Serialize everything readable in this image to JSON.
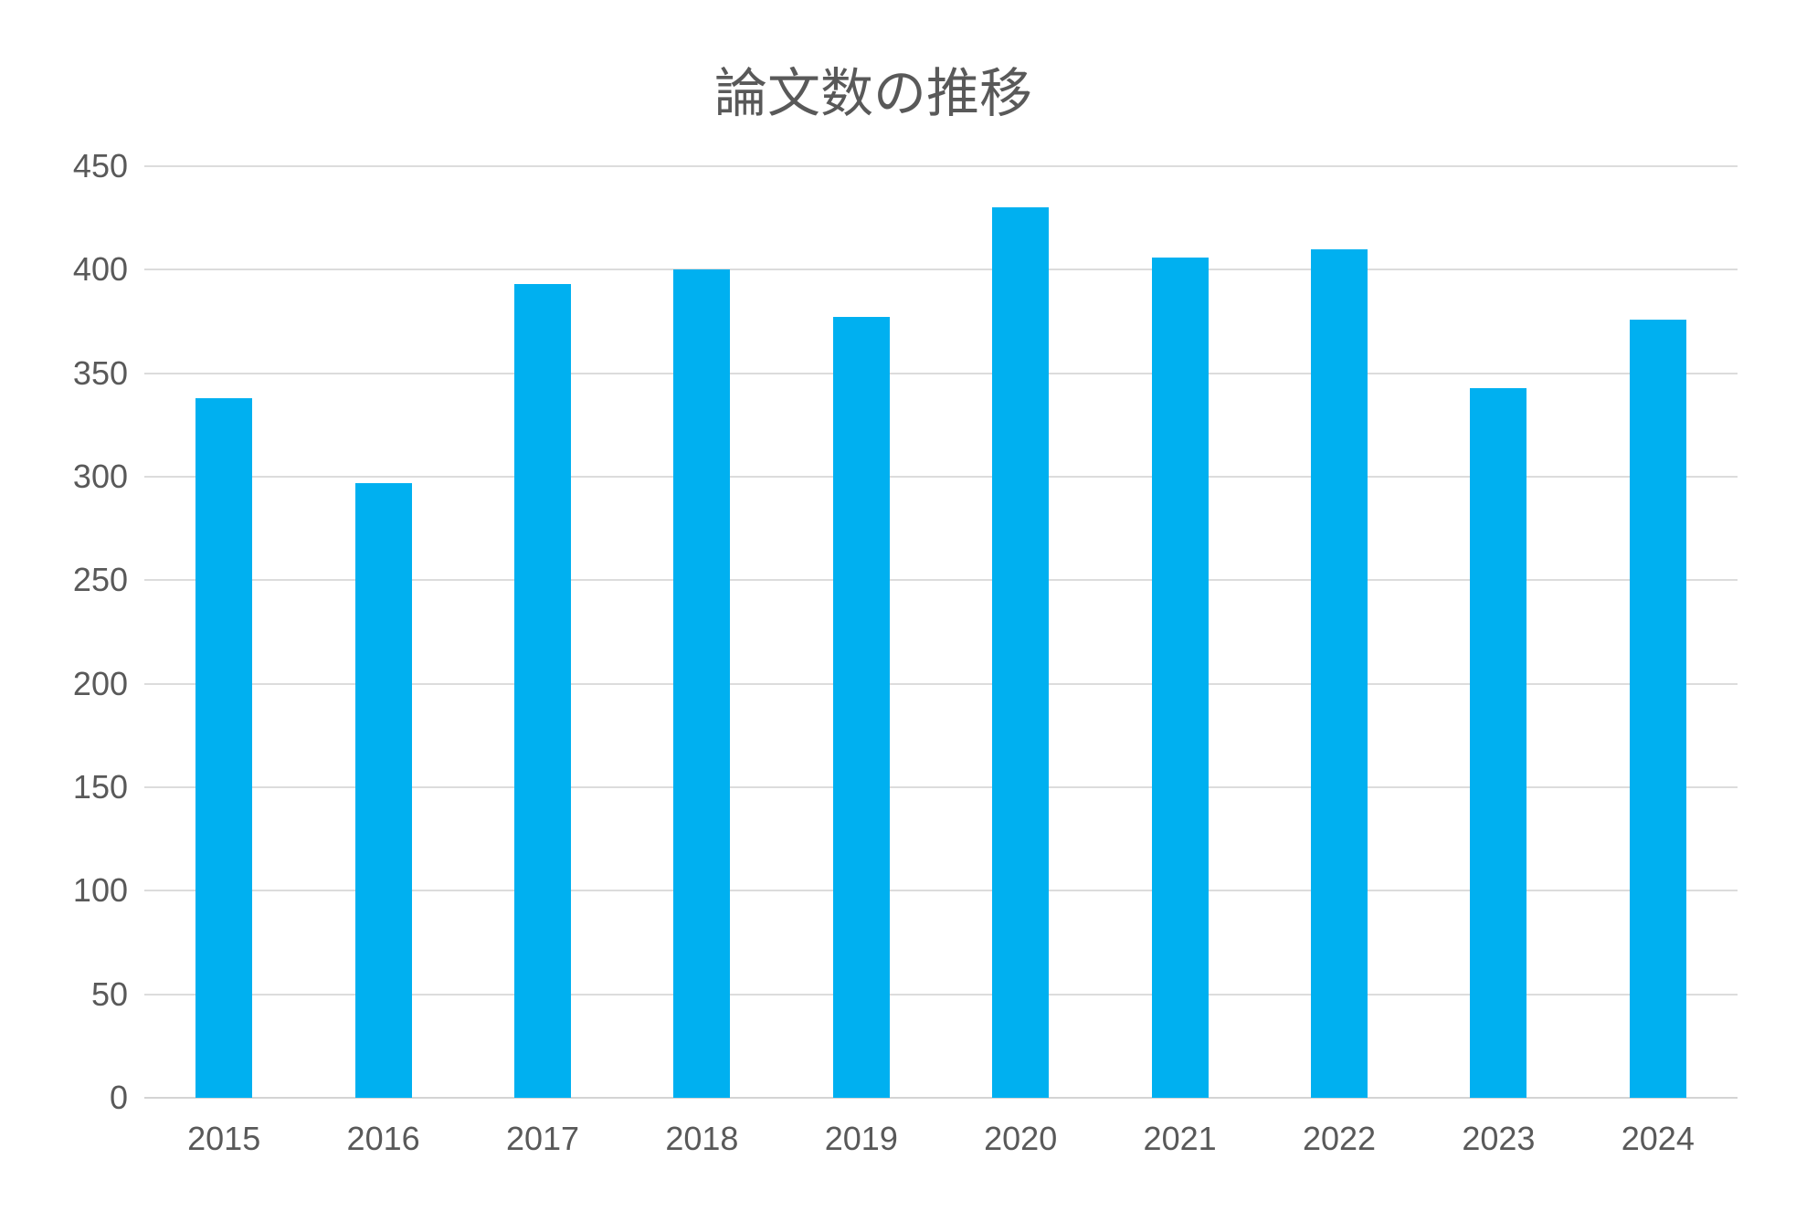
{
  "chart_data": {
    "type": "bar",
    "title": "論文数の推移",
    "categories": [
      "2015",
      "2016",
      "2017",
      "2018",
      "2019",
      "2020",
      "2021",
      "2022",
      "2023",
      "2024"
    ],
    "values": [
      338,
      297,
      393,
      400,
      377,
      430,
      406,
      410,
      343,
      376
    ],
    "xlabel": "",
    "ylabel": "",
    "ylim": [
      0,
      450
    ],
    "ytick_step": 50,
    "yticks": [
      450,
      400,
      350,
      300,
      250,
      200,
      150,
      100,
      50,
      0
    ],
    "grid": true,
    "legend": false,
    "colors": {
      "bar": "#00B0F0",
      "text": "#595959",
      "gridline": "#DCDCDC",
      "background": "#FFFFFF"
    }
  }
}
